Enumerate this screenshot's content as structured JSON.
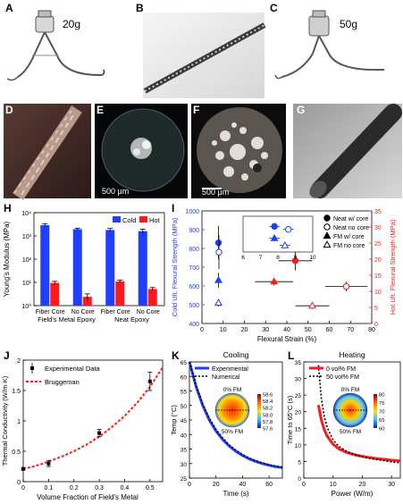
{
  "panels": {
    "A": {
      "letter": "A",
      "weight_label": "20g"
    },
    "B": {
      "letter": "B"
    },
    "C": {
      "letter": "C",
      "weight_label": "50g"
    },
    "D": {
      "letter": "D"
    },
    "E": {
      "letter": "E",
      "scalebar": "500 μm"
    },
    "F": {
      "letter": "F",
      "scalebar": "500 μm"
    },
    "G": {
      "letter": "G"
    },
    "H": {
      "letter": "H"
    },
    "I": {
      "letter": "I"
    },
    "J": {
      "letter": "J"
    },
    "K": {
      "letter": "K"
    },
    "L": {
      "letter": "L"
    }
  },
  "chart_data": [
    {
      "id": "H",
      "type": "bar",
      "ylabel": "Young's Modulus (MPa)",
      "yscale": "log",
      "ylim": [
        1,
        10000
      ],
      "yticks": [
        "10⁰",
        "10¹",
        "10²",
        "10³",
        "10⁴"
      ],
      "categories": [
        "Fiber Core",
        "No Core",
        "Fiber Core",
        "No Core"
      ],
      "group_labels": [
        "Field's Metal Epoxy",
        "Neat Epoxy"
      ],
      "legend": "top-right",
      "series": [
        {
          "name": "Cold",
          "color": "#1f3fff",
          "values": [
            2900,
            1950,
            1800,
            1600
          ],
          "err": [
            450,
            200,
            300,
            350
          ]
        },
        {
          "name": "Hot",
          "color": "#ff1a1a",
          "values": [
            9.5,
            2.4,
            11.0,
            5.2
          ],
          "err": [
            1.6,
            0.8,
            1.5,
            0.8
          ]
        }
      ]
    },
    {
      "id": "I",
      "type": "scatter",
      "xlabel": "Flexural Strain (%)",
      "ylabel_left": "Cold Ult. Flexural Strength (MPa)",
      "ylabel_right": "Hot Ult. Flexural Strength (MPa)",
      "xlim": [
        0,
        80
      ],
      "ylim_left": [
        400,
        1000
      ],
      "ylim_right": [
        0,
        35
      ],
      "xticks": [
        "0",
        "10",
        "20",
        "30",
        "40",
        "50",
        "60",
        "70",
        "80"
      ],
      "yticks_left": [
        "400",
        "500",
        "600",
        "700",
        "800",
        "900",
        "1000"
      ],
      "yticks_right": [
        "0",
        "5",
        "10",
        "15",
        "20",
        "25",
        "30",
        "35"
      ],
      "inset_xticks": [
        "6",
        "7",
        "8",
        "9",
        "10"
      ],
      "legend": [
        "Neat w/ core",
        "Neat no core",
        "FM w/ core",
        "FM no core"
      ],
      "cold_points": [
        {
          "series": "Neat w/ core",
          "x": 7.8,
          "y": 830,
          "ey": 90
        },
        {
          "series": "Neat no core",
          "x": 8.0,
          "y": 780,
          "ey": 90
        },
        {
          "series": "FM w/ core",
          "x": 7.8,
          "y": 630,
          "ey": 40
        },
        {
          "series": "FM no core",
          "x": 7.8,
          "y": 510,
          "ey": 20
        }
      ],
      "hot_points": [
        {
          "series": "Neat w/ core",
          "x": 44,
          "y": 19.5,
          "ex": 8,
          "ey": 3
        },
        {
          "series": "Neat no core",
          "x": 68,
          "y": 11.5,
          "ex": 10,
          "ey": 1.5
        },
        {
          "series": "FM w/ core",
          "x": 34,
          "y": 13.0,
          "ex": 9,
          "ey": 1.2
        },
        {
          "series": "FM no core",
          "x": 52,
          "y": 5.5,
          "ex": 8,
          "ey": 1
        }
      ]
    },
    {
      "id": "J",
      "type": "scatter",
      "xlabel": "Volume Fraction of Field's Metal",
      "ylabel": "Thermal Conductivity (W/m·K)",
      "xlim": [
        0,
        0.55
      ],
      "ylim": [
        0,
        2.0
      ],
      "xticks": [
        "0",
        "0.1",
        "0.2",
        "0.3",
        "0.4",
        "0.5"
      ],
      "yticks": [
        "0",
        "0.5",
        "1",
        "1.5",
        "2"
      ],
      "legend": [
        "Experimental Data",
        "Bruggeman"
      ],
      "points": [
        {
          "x": 0,
          "y": 0.21,
          "ey": 0.02
        },
        {
          "x": 0.1,
          "y": 0.3,
          "ey": 0.05
        },
        {
          "x": 0.3,
          "y": 0.8,
          "ey": 0.06
        },
        {
          "x": 0.5,
          "y": 1.65,
          "ey": 0.15
        }
      ],
      "model_x": [
        0,
        0.05,
        0.1,
        0.15,
        0.2,
        0.25,
        0.3,
        0.35,
        0.4,
        0.45,
        0.5,
        0.55
      ],
      "model_y": [
        0.21,
        0.26,
        0.33,
        0.41,
        0.5,
        0.61,
        0.74,
        0.9,
        1.08,
        1.3,
        1.56,
        1.88
      ]
    },
    {
      "id": "K",
      "type": "line",
      "title": "Cooling",
      "xlabel": "Time (s)",
      "ylabel": "Temp (°C)",
      "xlim": [
        0,
        70
      ],
      "ylim": [
        25,
        65
      ],
      "xticks": [
        "0",
        "20",
        "40",
        "60"
      ],
      "yticks": [
        "25",
        "30",
        "35",
        "40",
        "45",
        "50",
        "55",
        "60",
        "65"
      ],
      "legend": [
        "Experimental",
        "Numerical"
      ],
      "inset_top": "0% FM",
      "inset_bottom": "50% FM",
      "colorbar_ticks": [
        "58.6",
        "58.4",
        "58.2",
        "58.0",
        "57.8",
        "57.6"
      ],
      "x": [
        0,
        5,
        10,
        15,
        20,
        25,
        30,
        35,
        40,
        45,
        50,
        55,
        60,
        65,
        70
      ],
      "series": [
        {
          "name": "Experimental",
          "color": "#1f3fff",
          "values": [
            65,
            56.5,
            50,
            45,
            41.2,
            38.3,
            36,
            34.2,
            32.8,
            31.6,
            30.7,
            30,
            29.4,
            28.9,
            28.6
          ]
        },
        {
          "name": "Numerical",
          "color": "#000000",
          "values": [
            65,
            57,
            50.6,
            45.6,
            41.8,
            38.8,
            36.4,
            34.6,
            33.1,
            31.9,
            31,
            30.2,
            29.6,
            29.1,
            28.7
          ]
        }
      ]
    },
    {
      "id": "L",
      "type": "line",
      "title": "Heating",
      "xlabel": "Power (W/m)",
      "ylabel": "Time to 65°C (s)",
      "xlim": [
        0,
        33
      ],
      "ylim": [
        0,
        35
      ],
      "xticks": [
        "0",
        "10",
        "20",
        "30"
      ],
      "yticks": [
        "0",
        "5",
        "10",
        "15",
        "20",
        "25",
        "30",
        "35"
      ],
      "legend": [
        "0 vol% FM",
        "50 vol% FM"
      ],
      "inset_top": "0% FM",
      "inset_bottom": "50% FM",
      "colorbar_ticks": [
        "80",
        "75",
        "70",
        "65",
        "60"
      ],
      "x": [
        5,
        6,
        7,
        8,
        10,
        12,
        15,
        18,
        21,
        24,
        27,
        30,
        33
      ],
      "series": [
        {
          "name": "0 vol% FM",
          "color": "#ff1a1a",
          "values": [
            22,
            17.5,
            14.6,
            12.6,
            10.2,
            8.8,
            7.6,
            6.9,
            6.4,
            6.0,
            5.7,
            5.4,
            5.2
          ]
        },
        {
          "name": "50 vol% FM",
          "color": "#000000",
          "values": [
            34,
            24,
            18.5,
            15.2,
            11.5,
            9.5,
            7.9,
            6.9,
            6.2,
            5.7,
            5.3,
            4.9,
            4.6
          ]
        }
      ]
    }
  ]
}
